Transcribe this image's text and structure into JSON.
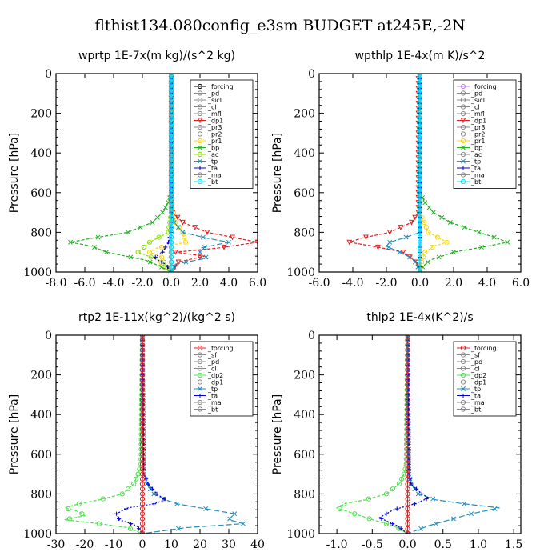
{
  "figure_title": "flthist134.080config_e3sm  BUDGET at245E,-2N",
  "chart_data": [
    {
      "type": "line",
      "title": "wprtp  1E-7x(m kg)/(s^2 kg)",
      "ylabel": "Pressure [hPa]",
      "xlim": [
        -8,
        6
      ],
      "ylim": [
        1000,
        0
      ],
      "xticks": [
        "-8.0",
        "-6.0",
        "-4.0",
        "-2.0",
        "0.0",
        "2.0",
        "4.0",
        "6.0"
      ],
      "xtick_values": [
        -8,
        -6,
        -4,
        -2,
        0,
        2,
        4,
        6
      ],
      "yticks": [
        "0",
        "200",
        "400",
        "600",
        "800",
        "1000"
      ],
      "ytick_values": [
        0,
        200,
        400,
        600,
        800,
        1000
      ],
      "legend": [
        "_forcing",
        "_pd",
        "_sicl",
        "_cl",
        "_mfl",
        "_dp1",
        "_pr3",
        "_pr2",
        "_pr1",
        "_bp",
        "_ac",
        "_tp",
        "_ta",
        "_ma",
        "_bt"
      ],
      "series": [
        {
          "name": "_forcing",
          "color": "#000000",
          "marker": "o",
          "dash": "",
          "p": [
            0,
            1000
          ],
          "x": [
            0,
            0
          ]
        },
        {
          "name": "_pr1",
          "color": "#ffd700",
          "marker": "o",
          "dash": "3,2",
          "p": [
            0,
            650,
            750,
            800,
            850,
            880,
            900,
            930,
            960,
            1000
          ],
          "x": [
            0,
            0,
            0.3,
            0.8,
            1.0,
            -1.0,
            -1.5,
            -0.5,
            -0.8,
            0
          ]
        },
        {
          "name": "_ac",
          "color": "#88e000",
          "marker": "o",
          "dash": "3,2",
          "p": [
            0,
            700,
            800,
            850,
            900,
            950,
            1000
          ],
          "x": [
            0,
            0,
            -0.2,
            -1.5,
            -2.3,
            -0.5,
            0
          ]
        },
        {
          "name": "_bp",
          "color": "#20b020",
          "marker": "x",
          "dash": "4,2",
          "p": [
            0,
            600,
            650,
            700,
            750,
            800,
            830,
            850,
            870,
            900,
            940,
            970,
            1000
          ],
          "x": [
            0,
            0,
            -0.2,
            -0.6,
            -1.3,
            -3.0,
            -5.5,
            -7.0,
            -5.5,
            -4.5,
            -1.8,
            -0.8,
            0
          ]
        },
        {
          "name": "_dp1",
          "color": "#e02020",
          "marker": "v",
          "dash": "4,2",
          "p": [
            0,
            650,
            700,
            750,
            800,
            850,
            880,
            900,
            920,
            950,
            1000
          ],
          "x": [
            0,
            0,
            0.1,
            0.8,
            2.5,
            6.0,
            3.2,
            0.3,
            2.3,
            0.5,
            0
          ]
        },
        {
          "name": "_tp",
          "color": "#1f8fbf",
          "marker": "x",
          "dash": "7,3",
          "p": [
            0,
            700,
            750,
            800,
            830,
            850,
            880,
            900,
            930,
            960,
            1000
          ],
          "x": [
            0,
            0,
            0.2,
            0.8,
            2.5,
            4.0,
            2.0,
            2.0,
            2.5,
            0.3,
            0
          ]
        },
        {
          "name": "_ta",
          "color": "#0000cc",
          "marker": "+",
          "dash": "2,2",
          "p": [
            0,
            800,
            850,
            900,
            930,
            960,
            1000
          ],
          "x": [
            0,
            0,
            -0.2,
            -0.6,
            -1.2,
            -0.4,
            0
          ]
        },
        {
          "name": "_bt",
          "color": "#00e5ff",
          "marker": "o",
          "dash": "",
          "p": [
            0,
            1000
          ],
          "x": [
            0,
            0
          ]
        }
      ]
    },
    {
      "type": "line",
      "title": "wpthlp  1E-4x(m K)/s^2",
      "ylabel": "Pressure [hPa]",
      "xlim": [
        -6,
        6
      ],
      "ylim": [
        1000,
        0
      ],
      "xticks": [
        "-6.0",
        "-4.0",
        "-2.0",
        "0.0",
        "2.0",
        "4.0",
        "6.0"
      ],
      "xtick_values": [
        -6,
        -4,
        -2,
        0,
        2,
        4,
        6
      ],
      "yticks": [
        "0",
        "200",
        "400",
        "600",
        "800",
        "1000"
      ],
      "ytick_values": [
        0,
        200,
        400,
        600,
        800,
        1000
      ],
      "legend": [
        "_forcing",
        "_pd",
        "_sicl",
        "_cl",
        "_mfl",
        "_dp1",
        "_pr3",
        "_pr2",
        "_pr1",
        "_bp",
        "_ac",
        "_tp",
        "_ta",
        "_ma",
        "_bt"
      ],
      "series": [
        {
          "name": "_forcing",
          "color": "#c080ff",
          "marker": "o",
          "dash": "",
          "p": [
            0,
            1000
          ],
          "x": [
            0,
            0
          ]
        },
        {
          "name": "_pr1",
          "color": "#ffd700",
          "marker": "o",
          "dash": "3,2",
          "p": [
            0,
            700,
            800,
            850,
            870,
            900,
            950,
            1000
          ],
          "x": [
            0,
            0,
            0.5,
            1.6,
            0.8,
            0.3,
            0.1,
            0
          ]
        },
        {
          "name": "_bp",
          "color": "#20b020",
          "marker": "x",
          "dash": "4,2",
          "p": [
            0,
            600,
            650,
            700,
            750,
            800,
            830,
            850,
            870,
            900,
            940,
            970,
            1000
          ],
          "x": [
            0,
            0,
            0.3,
            0.8,
            1.8,
            3.5,
            4.6,
            5.2,
            4.0,
            2.0,
            0.6,
            0.2,
            0
          ]
        },
        {
          "name": "_dp1",
          "color": "#e02020",
          "marker": "v",
          "dash": "4,2",
          "p": [
            0,
            700,
            750,
            800,
            830,
            850,
            870,
            900,
            950,
            1000
          ],
          "x": [
            -0.1,
            -0.1,
            -0.5,
            -1.8,
            -3.5,
            -4.2,
            -2.8,
            -1.0,
            -0.2,
            0
          ]
        },
        {
          "name": "_tp",
          "color": "#1f8fbf",
          "marker": "x",
          "dash": "7,3",
          "p": [
            0,
            800,
            830,
            850,
            870,
            900,
            930,
            960,
            1000
          ],
          "x": [
            0,
            0,
            -1.0,
            -1.8,
            -2.0,
            -1.2,
            -0.5,
            -0.2,
            0
          ]
        },
        {
          "name": "_ta",
          "color": "#0000cc",
          "marker": "+",
          "dash": "2,2",
          "p": [
            0,
            1000
          ],
          "x": [
            0,
            0
          ]
        },
        {
          "name": "_bt",
          "color": "#00e5ff",
          "marker": "o",
          "dash": "",
          "p": [
            0,
            1000
          ],
          "x": [
            0,
            0
          ]
        }
      ]
    },
    {
      "type": "line",
      "title": "rtp2  1E-11x(kg^2)/(kg^2 s)",
      "ylabel": "Pressure [hPa]",
      "xlim": [
        -30,
        40
      ],
      "ylim": [
        1000,
        0
      ],
      "xticks": [
        "-30",
        "-20",
        "-10",
        "0",
        "10",
        "20",
        "30",
        "40"
      ],
      "xtick_values": [
        -30,
        -20,
        -10,
        0,
        10,
        20,
        30,
        40
      ],
      "yticks": [
        "0",
        "200",
        "400",
        "600",
        "800",
        "1000"
      ],
      "ytick_values": [
        0,
        200,
        400,
        600,
        800,
        1000
      ],
      "legend": [
        "_forcing",
        "_sf",
        "_pd",
        "_cl",
        "_dp2",
        "_dp1",
        "_tp",
        "_ta",
        "_ma",
        "_bt"
      ],
      "series": [
        {
          "name": "_dp2",
          "color": "#50e050",
          "marker": "o",
          "dash": "4,2",
          "p": [
            0,
            650,
            700,
            750,
            800,
            830,
            850,
            870,
            890,
            910,
            930,
            950,
            970,
            1000
          ],
          "x": [
            0,
            -0.5,
            -1.5,
            -3,
            -7,
            -15,
            -22,
            -27,
            -22,
            -20,
            -27,
            -15,
            -5,
            0
          ]
        },
        {
          "name": "_tp",
          "color": "#1f8fbf",
          "marker": "x",
          "dash": "7,3",
          "p": [
            0,
            700,
            750,
            800,
            830,
            850,
            870,
            900,
            930,
            950,
            970,
            1000
          ],
          "x": [
            0,
            0.5,
            1.5,
            4,
            8,
            12,
            20,
            32,
            30,
            35,
            15,
            0
          ]
        },
        {
          "name": "_ta",
          "color": "#0000cc",
          "marker": "+",
          "dash": "2,2",
          "p": [
            0,
            700,
            750,
            800,
            830,
            850,
            870,
            900,
            930,
            960,
            1000
          ],
          "x": [
            0,
            0.5,
            2,
            5,
            8,
            4,
            -5,
            -9,
            -8,
            -2,
            0
          ]
        },
        {
          "name": "_forcing",
          "color": "#e02020",
          "marker": "o",
          "dash": "",
          "p": [
            0,
            1000
          ],
          "x": [
            0,
            0
          ]
        }
      ]
    },
    {
      "type": "line",
      "title": "thlp2  1E-4x(K^2)/s",
      "ylabel": "Pressure [hPa]",
      "xlim": [
        -1.25,
        1.6
      ],
      "ylim": [
        1000,
        0
      ],
      "xticks": [
        "-1.0",
        "-0.5",
        "0.0",
        "0.5",
        "1.0",
        "1.5"
      ],
      "xtick_values": [
        -1,
        -0.5,
        0,
        0.5,
        1,
        1.5
      ],
      "yticks": [
        "0",
        "200",
        "400",
        "600",
        "800",
        "1000"
      ],
      "ytick_values": [
        0,
        200,
        400,
        600,
        800,
        1000
      ],
      "legend": [
        "_forcing",
        "_sf",
        "_pd",
        "_cl",
        "_dp2",
        "_dp1",
        "_tp",
        "_ta",
        "_ma",
        "_bt"
      ],
      "series": [
        {
          "name": "_dp2",
          "color": "#50e050",
          "marker": "o",
          "dash": "4,2",
          "p": [
            0,
            650,
            700,
            750,
            800,
            830,
            850,
            870,
            900,
            930,
            960,
            1000
          ],
          "x": [
            0,
            -0.02,
            -0.05,
            -0.12,
            -0.3,
            -0.6,
            -0.9,
            -1.0,
            -0.75,
            -0.5,
            -0.2,
            0
          ]
        },
        {
          "name": "_tp",
          "color": "#1f8fbf",
          "marker": "x",
          "dash": "7,3",
          "p": [
            0,
            700,
            750,
            800,
            830,
            850,
            870,
            900,
            930,
            960,
            1000
          ],
          "x": [
            0,
            0.02,
            0.05,
            0.15,
            0.4,
            0.8,
            1.3,
            0.9,
            0.6,
            0.3,
            0
          ]
        },
        {
          "name": "_ta",
          "color": "#0000cc",
          "marker": "+",
          "dash": "2,2",
          "p": [
            0,
            700,
            750,
            800,
            820,
            850,
            880,
            920,
            960,
            1000
          ],
          "x": [
            0,
            0.02,
            0.05,
            0.2,
            0.3,
            0.1,
            -0.2,
            -0.4,
            -0.15,
            0
          ]
        },
        {
          "name": "_forcing",
          "color": "#e02020",
          "marker": "o",
          "dash": "",
          "p": [
            0,
            1000
          ],
          "x": [
            0,
            0
          ]
        }
      ]
    }
  ]
}
